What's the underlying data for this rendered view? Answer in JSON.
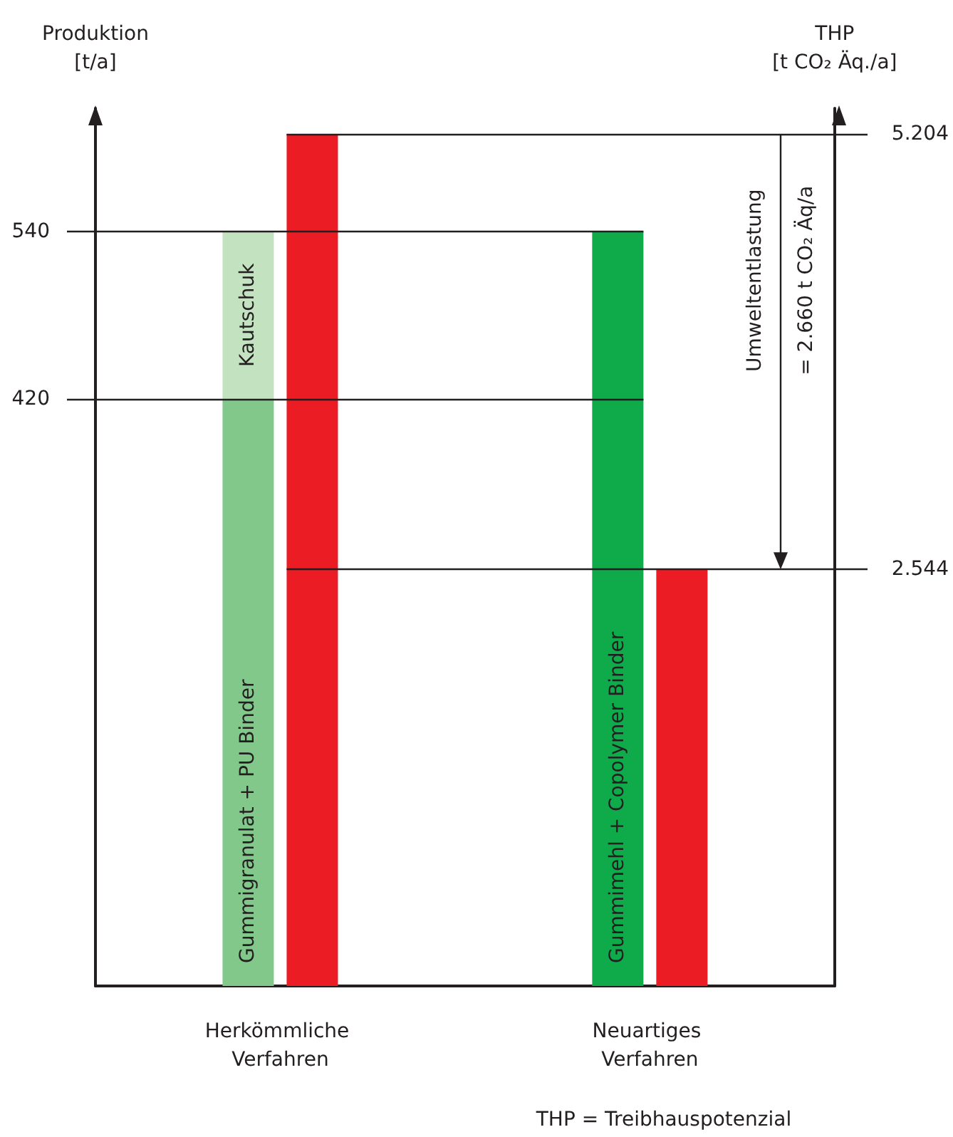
{
  "chart_data": {
    "type": "bar",
    "stacked": true,
    "grid": true,
    "categories": [
      "Herkömmliche Verfahren",
      "Neuartiges Verfahren"
    ],
    "ylabel": "Produktion [t/a]",
    "y2label": "THP [t CO₂ Äq./a]",
    "ylim": [
      0,
      628
    ],
    "yticks": [
      420,
      540
    ],
    "y2lim": [
      0,
      5361
    ],
    "y2ticks": [
      {
        "value": 5204,
        "label": "5.204"
      },
      {
        "value": 2544,
        "label": "2.544"
      }
    ],
    "series": [
      {
        "colors": [
          "#82c88b",
          "#0fab4b"
        ],
        "values": [
          420,
          540
        ],
        "value_labels": [
          "Gummigranulat + PU Binder",
          "Gummimehl + Copolymer Binder"
        ]
      },
      {
        "color": "#c3e2c0",
        "values": [
          120,
          null
        ],
        "value_labels": [
          "Kautschuk",
          null
        ]
      },
      {
        "color": "#ec1c24",
        "values": [
          5204,
          2544
        ],
        "axis": "y2"
      }
    ],
    "annotations": [
      "Umweltentlastung",
      "= 2.660 t CO₂ Äq/a",
      "THP = Treibhauspotenzial"
    ]
  }
}
